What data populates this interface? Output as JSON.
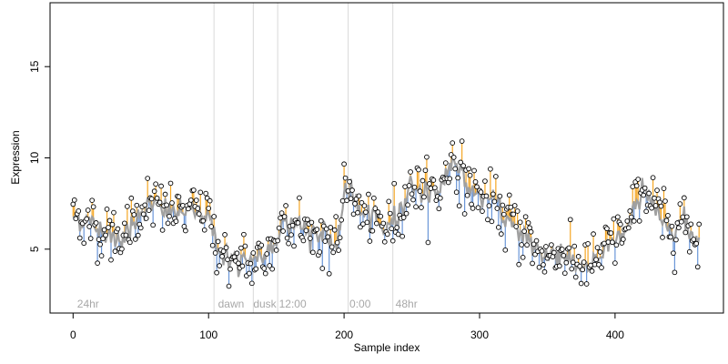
{
  "chart_data": {
    "type": "scatter",
    "title": "",
    "xlabel": "Sample index",
    "ylabel": "Expression",
    "xlim": [
      -17,
      480
    ],
    "ylim": [
      1.5,
      18.5
    ],
    "x_ticks": [
      0,
      100,
      200,
      300,
      400
    ],
    "y_ticks": [
      5,
      10,
      15
    ],
    "grid": false,
    "legend": "none",
    "colors": {
      "points_fill": "#ffffff",
      "points_stroke": "#000000",
      "above_fit": "#f5a623",
      "below_fit": "#6a96d8",
      "fit_line": "#a0a0a0",
      "dividers": "#d9d9d9",
      "annotations": "#a8a8a8"
    },
    "dividers": [
      104,
      133,
      151,
      203,
      236
    ],
    "annotations": [
      {
        "text": "24hr",
        "x": 3
      },
      {
        "text": "dawn",
        "x": 107
      },
      {
        "text": "dusk",
        "x": 133
      },
      {
        "text": "12:00",
        "x": 152
      },
      {
        "text": "0:00",
        "x": 204
      },
      {
        "text": "48hr",
        "x": 238
      }
    ],
    "trend": [
      [
        0,
        6.9
      ],
      [
        10,
        6.5
      ],
      [
        20,
        6.1
      ],
      [
        30,
        5.7
      ],
      [
        40,
        5.8
      ],
      [
        50,
        7.2
      ],
      [
        60,
        7.4
      ],
      [
        70,
        7.1
      ],
      [
        80,
        7.0
      ],
      [
        90,
        7.1
      ],
      [
        100,
        6.9
      ],
      [
        105,
        5.6
      ],
      [
        110,
        4.7
      ],
      [
        120,
        4.3
      ],
      [
        130,
        4.2
      ],
      [
        140,
        4.6
      ],
      [
        150,
        5.3
      ],
      [
        155,
        6.9
      ],
      [
        160,
        6.6
      ],
      [
        170,
        6.1
      ],
      [
        180,
        5.9
      ],
      [
        190,
        5.6
      ],
      [
        195,
        4.7
      ],
      [
        200,
        8.1
      ],
      [
        205,
        8.6
      ],
      [
        210,
        7.1
      ],
      [
        220,
        6.6
      ],
      [
        230,
        6.1
      ],
      [
        240,
        6.9
      ],
      [
        250,
        8.6
      ],
      [
        260,
        8.1
      ],
      [
        270,
        8.1
      ],
      [
        280,
        10.1
      ],
      [
        290,
        8.6
      ],
      [
        300,
        7.9
      ],
      [
        310,
        7.6
      ],
      [
        320,
        6.6
      ],
      [
        330,
        6.1
      ],
      [
        340,
        5.1
      ],
      [
        350,
        4.6
      ],
      [
        360,
        4.9
      ],
      [
        370,
        4.3
      ],
      [
        380,
        3.9
      ],
      [
        390,
        4.6
      ],
      [
        400,
        5.6
      ],
      [
        410,
        6.1
      ],
      [
        420,
        8.6
      ],
      [
        430,
        7.1
      ],
      [
        440,
        6.1
      ],
      [
        450,
        6.6
      ],
      [
        460,
        5.6
      ]
    ]
  }
}
